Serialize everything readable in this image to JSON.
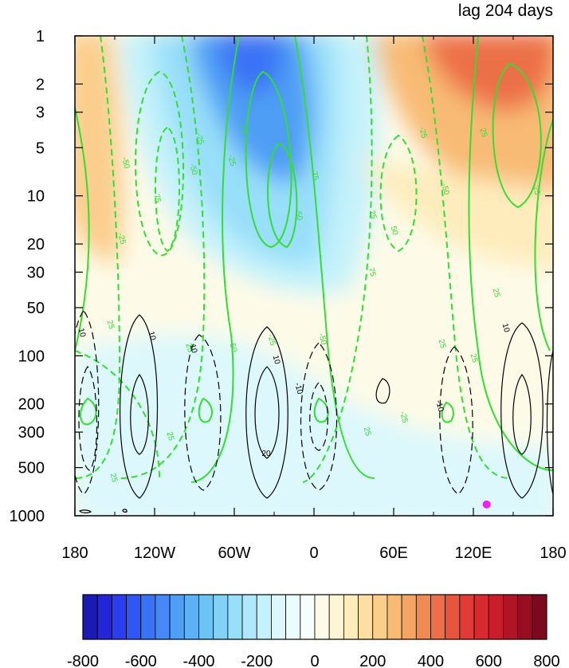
{
  "chart_data": {
    "type": "heatmap",
    "title": "lag 204 days",
    "x_ticks": [
      "180",
      "120W",
      "60W",
      "0",
      "60E",
      "120E",
      "180"
    ],
    "x_tick_values": [
      -180,
      -120,
      -60,
      0,
      60,
      120,
      180
    ],
    "y_ticks": [
      "1",
      "2",
      "3",
      "5",
      "10",
      "20",
      "30",
      "50",
      "100",
      "200",
      "300",
      "500",
      "1000"
    ],
    "y_tick_values": [
      1,
      2,
      3,
      5,
      10,
      20,
      30,
      50,
      100,
      200,
      300,
      500,
      1000
    ],
    "y_scale": "log",
    "y_reversed": true,
    "xlim": [
      -180,
      180
    ],
    "ylim": [
      1000,
      1
    ],
    "colorbar": {
      "levels_min": -800,
      "levels_max": 800,
      "step": 50,
      "labels": [
        "-800",
        "-600",
        "-400",
        "-200",
        "0",
        "200",
        "400",
        "600",
        "800"
      ],
      "label_values": [
        -800,
        -600,
        -400,
        -200,
        0,
        200,
        400,
        600,
        800
      ],
      "colors": [
        "#1a1ab4",
        "#2424d8",
        "#2a3ef0",
        "#3057f5",
        "#3a72f6",
        "#4489f6",
        "#4e9ef4",
        "#5cb2f4",
        "#6ec3f5",
        "#82d1f7",
        "#98dff9",
        "#ade9fa",
        "#c4f2fb",
        "#dcf8fc",
        "#eafcfc",
        "#f6fdfb",
        "#fdfbe8",
        "#fef5d4",
        "#feecbc",
        "#fddfa4",
        "#fbce8c",
        "#f8bb76",
        "#f4a463",
        "#f08a53",
        "#ec6f47",
        "#e8553e",
        "#e23a36",
        "#d92a2f",
        "#c81e2b",
        "#b01526",
        "#960f22",
        "#7c0a1e"
      ]
    },
    "series": [
      {
        "name": "green",
        "color": "#33dd33",
        "values": [
          -75,
          -50,
          -25,
          25,
          50,
          75
        ]
      },
      {
        "name": "black",
        "color": "#000000",
        "values": [
          -20,
          -10,
          0,
          10,
          20
        ]
      }
    ],
    "contour_labels_green": [
      "25",
      "-50",
      "-25",
      "-75",
      "-50",
      "-25",
      "25",
      "50",
      "75",
      "-25",
      "-50",
      "-75",
      "-25",
      "-50",
      "25",
      "50",
      "75",
      "-25",
      "-50",
      "25",
      "25",
      "-25",
      "25",
      "25",
      "-25",
      "25",
      "25",
      "25"
    ],
    "contour_labels_black": [
      "10",
      "10",
      "-10",
      "10",
      "20",
      "-10",
      "10",
      "10"
    ],
    "marker": {
      "lon": 130,
      "pressure": 850,
      "color": "#ee22ee"
    }
  }
}
